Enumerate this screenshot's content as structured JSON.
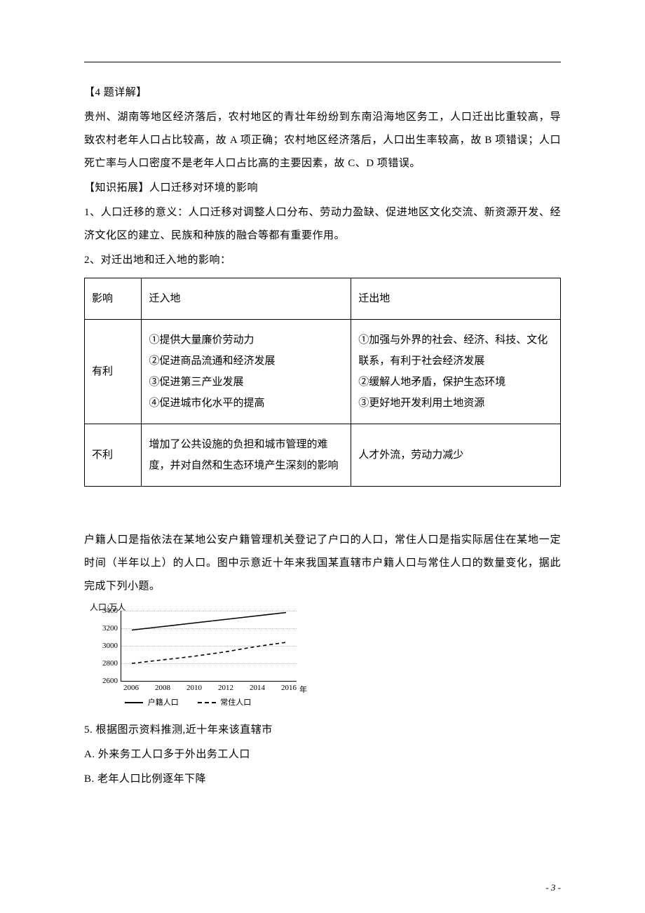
{
  "body": {
    "q4_title": "【4 题详解】",
    "q4_p1": "贵州、湖南等地区经济落后，农村地区的青壮年纷纷到东南沿海地区务工，人口迁出比重较高，导致农村老年人口占比较高，故 A 项正确；农村地区经济落后，人口出生率较高，故 B 项错误；人口死亡率与人口密度不是老年人口占比高的主要因素，故 C、D 项错误。",
    "ext_title": "【知识拓展】人口迁移对环境的影响",
    "ext_p1": "1、人口迁移的意义：人口迁移对调整人口分布、劳动力盈缺、促进地区文化交流、新资源开发、经济文化区的建立、民族和种族的融合等都有重要作用。",
    "ext_p2": "2、对迁出地和迁入地的影响："
  },
  "table": {
    "header": [
      "影响",
      "迁入地",
      "迁出地"
    ],
    "rows": [
      {
        "label": "有利",
        "in_area": "①提供大量廉价劳动力\n②促进商品流通和经济发展\n③促进第三产业发展\n④促进城市化水平的提高",
        "out_area": "①加强与外界的社会、经济、科技、文化联系，有利于社会经济发展\n②缓解人地矛盾，保护生态环境\n③更好地开发利用土地资源"
      },
      {
        "label": "不利",
        "in_area": "增加了公共设施的负担和城市管理的难度，并对自然和生态环境产生深刻的影响",
        "out_area": "人才外流，劳动力减少"
      }
    ]
  },
  "stem": {
    "p": "户籍人口是指依法在某地公安户籍管理机关登记了户口的人口，常住人口是指实际居住在某地一定时间（半年以上）的人口。图中示意近十年来我国某直辖市户籍人口与常住人口的数量变化，据此完成下列小题。"
  },
  "chart": {
    "y_label": "人口/万人",
    "x_unit": "年",
    "ylim": [
      2600,
      3400
    ],
    "ytick_step": 200,
    "yticks": [
      2600,
      2800,
      3000,
      3200,
      3400
    ],
    "xticks": [
      2006,
      2008,
      2010,
      2012,
      2014,
      2016
    ],
    "series": [
      {
        "name": "户籍人口",
        "dash": "solid",
        "color": "#000000",
        "x": [
          2006,
          2008,
          2010,
          2012,
          2014,
          2016
        ],
        "y": [
          3180,
          3220,
          3260,
          3300,
          3340,
          3380
        ]
      },
      {
        "name": "常住人口",
        "dash": "dashed",
        "color": "#000000",
        "x": [
          2006,
          2008,
          2010,
          2012,
          2014,
          2016
        ],
        "y": [
          2800,
          2840,
          2880,
          2930,
          2990,
          3040
        ]
      }
    ],
    "grid_color": "#bdbdbd",
    "bg_color": "#ffffff",
    "axis_color": "#000000",
    "font_size": 11
  },
  "question": {
    "q5": "5. 根据图示资料推测,近十年来该直辖市",
    "optA": "A. 外来务工人口多于外出务工人口",
    "optB": "B. 老年人口比例逐年下降"
  },
  "page_number": "- 3 -"
}
